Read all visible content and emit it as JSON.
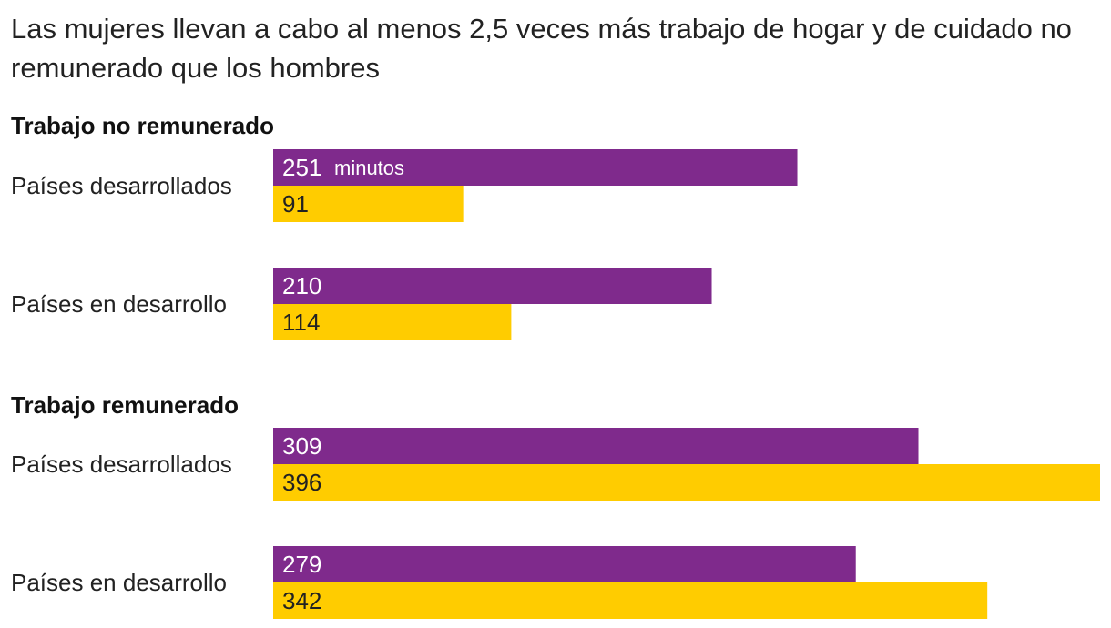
{
  "title": "Las mujeres llevan a cabo al menos 2,5 veces más trabajo de hogar y de cuidado no remunerado que los hombres",
  "colors": {
    "women": "#7f2a8c",
    "men": "#ffcc00",
    "women_text": "#ffffff",
    "men_text": "#222222"
  },
  "chart_data": {
    "type": "bar",
    "orientation": "horizontal",
    "unit": "minutos",
    "xlim": [
      0,
      396
    ],
    "groups": [
      {
        "title": "Trabajo no remunerado",
        "categories": [
          {
            "label": "Países desarrollados",
            "values": [
              251,
              91
            ]
          },
          {
            "label": "Países en desarrollo",
            "values": [
              210,
              114
            ]
          }
        ]
      },
      {
        "title": "Trabajo remunerado",
        "categories": [
          {
            "label": "Países desarrollados",
            "values": [
              309,
              396
            ]
          },
          {
            "label": "Países en desarrollo",
            "values": [
              279,
              342
            ]
          }
        ]
      }
    ]
  }
}
